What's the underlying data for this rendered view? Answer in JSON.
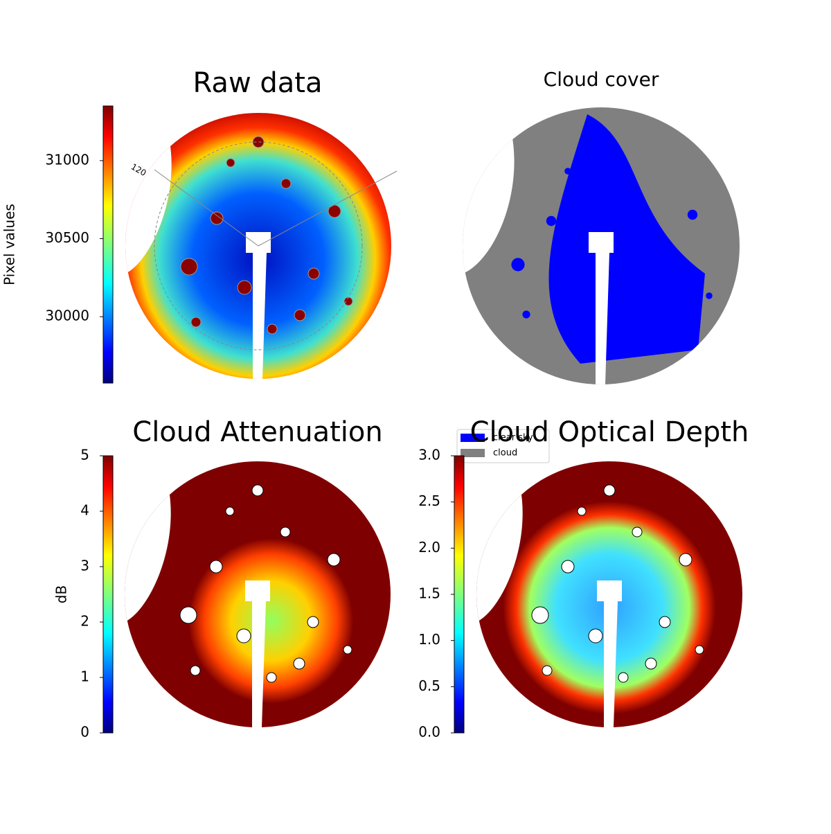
{
  "chart_data": [
    {
      "type": "image",
      "title": "Raw data",
      "colorbar_label": "Pixel values",
      "clim": [
        29575,
        31350
      ],
      "cticks": [
        30000,
        30500,
        31000
      ],
      "annotations": [
        "120"
      ],
      "colormap": "jet"
    },
    {
      "type": "mask",
      "title": "Cloud cover",
      "series": [
        {
          "name": "clear sky",
          "color": "#0000ff"
        },
        {
          "name": "cloud",
          "color": "#808080"
        }
      ]
    },
    {
      "type": "image",
      "title": "Cloud Attenuation",
      "colorbar_label": "dB",
      "clim": [
        0,
        5
      ],
      "cticks": [
        0,
        1,
        2,
        3,
        4,
        5
      ],
      "colormap": "jet"
    },
    {
      "type": "image",
      "title": "Cloud Optical Depth",
      "clim": [
        0,
        3
      ],
      "cticks": [
        {
          "value": 0,
          "label": "0.0"
        },
        0.5,
        {
          "value": 1,
          "label": "1.0"
        },
        1.5,
        {
          "value": 2,
          "label": "2.0"
        },
        2.5,
        {
          "value": 3,
          "label": "3.0"
        }
      ],
      "colormap": "jet"
    }
  ]
}
